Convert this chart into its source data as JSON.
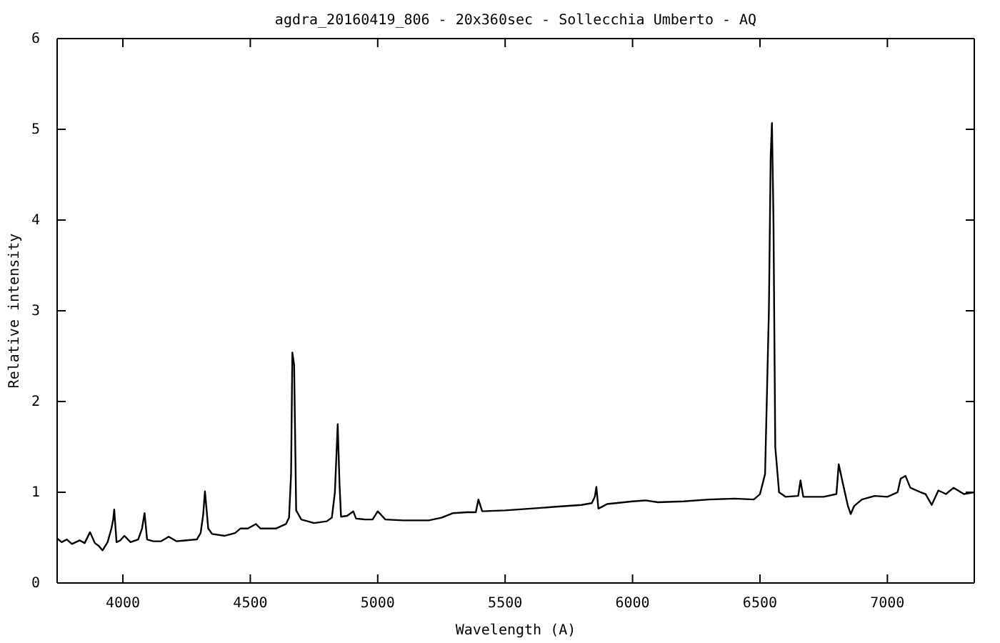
{
  "chart_data": {
    "type": "line",
    "title": "agdra_20160419_806 - 20x360sec - Sollecchia Umberto - AQ",
    "xlabel": "Wavelength (A)",
    "ylabel": "Relative intensity",
    "xlim": [
      3742,
      7341
    ],
    "ylim": [
      0,
      6
    ],
    "xticks": [
      4000,
      4500,
      5000,
      5500,
      6000,
      6500,
      7000
    ],
    "yticks": [
      0,
      1,
      2,
      3,
      4,
      5,
      6
    ],
    "grid": false,
    "series": [
      {
        "color": "#000000",
        "x": [
          3742,
          3760,
          3780,
          3800,
          3830,
          3850,
          3871,
          3890,
          3905,
          3920,
          3940,
          3955,
          3962,
          3966,
          3975,
          3990,
          4006,
          4030,
          4060,
          4075,
          4085,
          4095,
          4120,
          4150,
          4180,
          4210,
          4250,
          4290,
          4305,
          4315,
          4322,
          4335,
          4350,
          4400,
          4440,
          4461,
          4490,
          4522,
          4540,
          4600,
          4640,
          4652,
          4660,
          4665,
          4672,
          4680,
          4700,
          4750,
          4800,
          4820,
          4832,
          4843,
          4850,
          4856,
          4880,
          4904,
          4915,
          4950,
          4980,
          5000,
          5030,
          5100,
          5200,
          5250,
          5296,
          5350,
          5385,
          5395,
          5410,
          5500,
          5600,
          5700,
          5800,
          5840,
          5852,
          5858,
          5866,
          5880,
          5900,
          6000,
          6050,
          6100,
          6200,
          6300,
          6400,
          6476,
          6500,
          6520,
          6535,
          6542,
          6547,
          6553,
          6560,
          6575,
          6600,
          6650,
          6659,
          6670,
          6750,
          6800,
          6809,
          6825,
          6845,
          6856,
          6870,
          6900,
          6950,
          7000,
          7040,
          7052,
          7071,
          7090,
          7130,
          7150,
          7174,
          7200,
          7230,
          7260,
          7300,
          7341
        ],
        "values": [
          0.49,
          0.45,
          0.48,
          0.43,
          0.47,
          0.44,
          0.56,
          0.44,
          0.41,
          0.36,
          0.45,
          0.6,
          0.7,
          0.81,
          0.45,
          0.47,
          0.52,
          0.45,
          0.48,
          0.6,
          0.77,
          0.48,
          0.46,
          0.46,
          0.51,
          0.46,
          0.47,
          0.48,
          0.55,
          0.75,
          1.01,
          0.6,
          0.54,
          0.52,
          0.55,
          0.6,
          0.6,
          0.65,
          0.6,
          0.6,
          0.65,
          0.72,
          1.2,
          2.54,
          2.4,
          0.8,
          0.7,
          0.66,
          0.68,
          0.72,
          1.0,
          1.75,
          1.1,
          0.73,
          0.74,
          0.79,
          0.71,
          0.7,
          0.7,
          0.79,
          0.7,
          0.69,
          0.69,
          0.72,
          0.77,
          0.78,
          0.78,
          0.92,
          0.79,
          0.8,
          0.82,
          0.84,
          0.86,
          0.88,
          0.95,
          1.06,
          0.82,
          0.84,
          0.87,
          0.9,
          0.91,
          0.89,
          0.9,
          0.92,
          0.93,
          0.92,
          0.98,
          1.2,
          3.0,
          4.7,
          5.07,
          4.0,
          1.5,
          1.0,
          0.95,
          0.96,
          1.13,
          0.95,
          0.95,
          0.98,
          1.31,
          1.1,
          0.85,
          0.76,
          0.85,
          0.92,
          0.96,
          0.95,
          1.0,
          1.15,
          1.18,
          1.05,
          1.0,
          0.98,
          0.86,
          1.02,
          0.98,
          1.05,
          0.98,
          1.0
        ]
      }
    ]
  }
}
